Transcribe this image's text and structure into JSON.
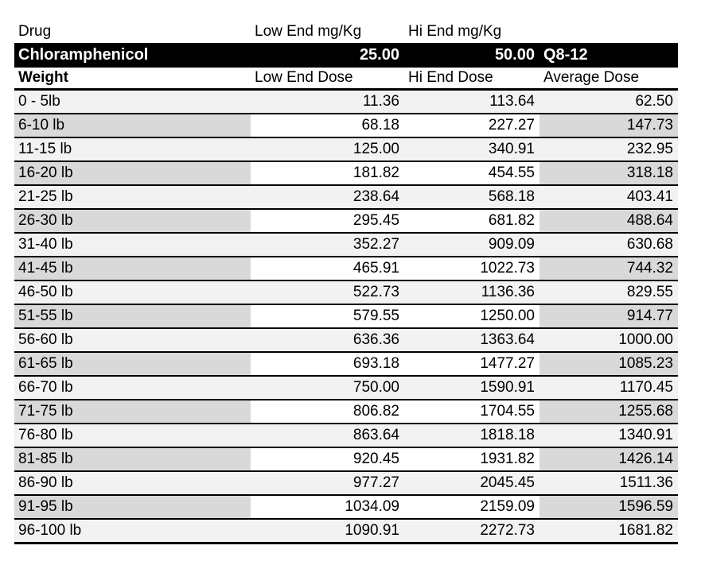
{
  "colors": {
    "page_bg": "#ffffff",
    "band_bg": "#000000",
    "band_text": "#ffffff",
    "row_light": "#f2f2f2",
    "row_gray": "#d9d9d9",
    "row_white": "#ffffff",
    "border": "#000000",
    "text": "#000000"
  },
  "table": {
    "header_top": {
      "drug": "Drug",
      "low": "Low End mg/Kg",
      "hi": "Hi End mg/Kg"
    },
    "drug_band": {
      "name": "Chloramphenicol",
      "low": "25.00",
      "hi": "50.00",
      "schedule": "Q8-12"
    },
    "header_cols": {
      "weight": "Weight",
      "low": "Low End Dose",
      "hi": "Hi End Dose",
      "avg": "Average Dose"
    }
  },
  "chart_data": {
    "type": "table",
    "drug": {
      "name": "Chloramphenicol",
      "low_end_mg_per_kg": "25.00",
      "hi_end_mg_per_kg": "50.00",
      "dosing_interval": "Q8-12"
    },
    "columns": [
      "Weight",
      "Low End Dose",
      "Hi End Dose",
      "Average Dose"
    ],
    "rows": [
      [
        "0 - 5lb",
        "11.36",
        "113.64",
        "62.50"
      ],
      [
        "6-10 lb",
        "68.18",
        "227.27",
        "147.73"
      ],
      [
        "11-15 lb",
        "125.00",
        "340.91",
        "232.95"
      ],
      [
        "16-20 lb",
        "181.82",
        "454.55",
        "318.18"
      ],
      [
        "21-25 lb",
        "238.64",
        "568.18",
        "403.41"
      ],
      [
        "26-30 lb",
        "295.45",
        "681.82",
        "488.64"
      ],
      [
        "31-40 lb",
        "352.27",
        "909.09",
        "630.68"
      ],
      [
        "41-45 lb",
        "465.91",
        "1022.73",
        "744.32"
      ],
      [
        "46-50 lb",
        "522.73",
        "1136.36",
        "829.55"
      ],
      [
        "51-55 lb",
        "579.55",
        "1250.00",
        "914.77"
      ],
      [
        "56-60 lb",
        "636.36",
        "1363.64",
        "1000.00"
      ],
      [
        "61-65 lb",
        "693.18",
        "1477.27",
        "1085.23"
      ],
      [
        "66-70 lb",
        "750.00",
        "1590.91",
        "1170.45"
      ],
      [
        "71-75 lb",
        "806.82",
        "1704.55",
        "1255.68"
      ],
      [
        "76-80 lb",
        "863.64",
        "1818.18",
        "1340.91"
      ],
      [
        "81-85 lb",
        "920.45",
        "1931.82",
        "1426.14"
      ],
      [
        "86-90 lb",
        "977.27",
        "2045.45",
        "1511.36"
      ],
      [
        "91-95 lb",
        "1034.09",
        "2159.09",
        "1596.59"
      ],
      [
        "96-100 lb",
        "1090.91",
        "2272.73",
        "1681.82"
      ]
    ]
  }
}
